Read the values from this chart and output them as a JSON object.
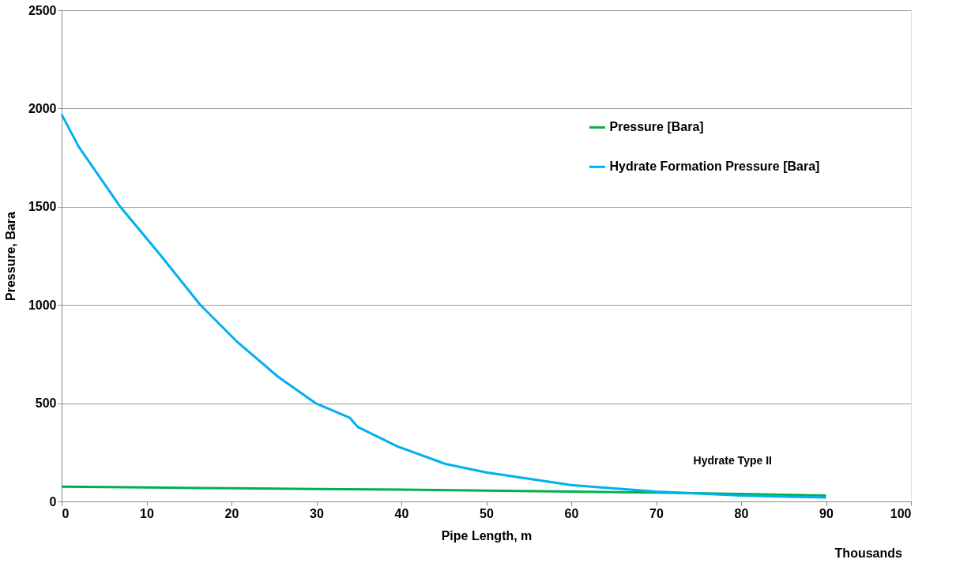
{
  "chart_data": {
    "type": "line",
    "xlabel": "Pipe Length, m",
    "ylabel": "Pressure,  Bara",
    "xlim": [
      0,
      100
    ],
    "xticks": [
      0,
      10,
      20,
      30,
      40,
      50,
      60,
      70,
      80,
      90,
      100
    ],
    "ylim": [
      0,
      2500
    ],
    "yticks": [
      0,
      500,
      1000,
      1500,
      2000,
      2500
    ],
    "grid": "y",
    "legend": "top right",
    "marker": "none",
    "line_style": "solid",
    "series": [
      {
        "name": "Pressure [Bara]",
        "color": "#00b050",
        "x": [
          0,
          10,
          20,
          30,
          40,
          50,
          60,
          70,
          80,
          90
        ],
        "values": [
          75,
          71,
          67,
          63,
          60,
          55,
          50,
          45,
          38,
          30
        ]
      },
      {
        "name": "Hydrate Formation Pressure [Bara]",
        "color": "#00b0f0",
        "x": [
          0,
          2.0,
          6.9,
          11.5,
          16.3,
          20.7,
          25.5,
          29.9,
          33.9,
          34.9,
          39.6,
          45.2,
          50,
          60,
          70,
          80,
          90
        ],
        "values": [
          1970,
          1806,
          1500,
          1261,
          1002,
          811,
          634,
          500,
          427,
          378,
          279,
          191,
          148,
          83,
          50,
          30,
          20
        ]
      }
    ],
    "annotations": [
      "Hydrate Type II",
      "Thousands"
    ]
  }
}
